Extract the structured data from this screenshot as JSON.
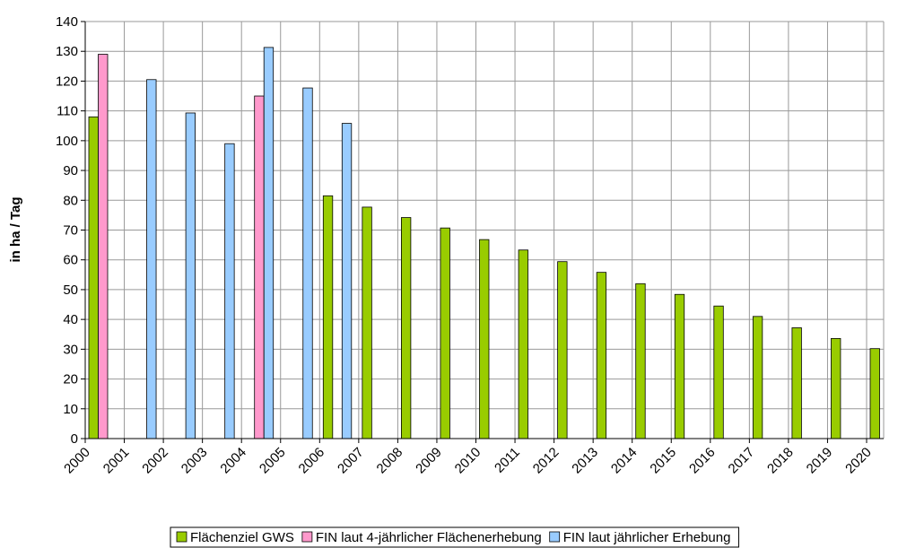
{
  "chart_data": {
    "type": "bar",
    "y_label": "in ha / Tag",
    "categories": [
      "2000",
      "2001",
      "2002",
      "2003",
      "2004",
      "2005",
      "2006",
      "2007",
      "2008",
      "2009",
      "2010",
      "2011",
      "2012",
      "2013",
      "2014",
      "2015",
      "2016",
      "2017",
      "2018",
      "2019",
      "2020"
    ],
    "series": [
      {
        "name": "Flächenziel GWS",
        "color": "#99cc00",
        "values": [
          108,
          null,
          null,
          null,
          null,
          null,
          81.5,
          77.7,
          74.2,
          70.7,
          66.8,
          63.3,
          59.4,
          55.8,
          52,
          48.4,
          44.5,
          41,
          37.2,
          33.6,
          30.2
        ]
      },
      {
        "name": "FIN laut 4-jährlicher Flächenerhebung",
        "color": "#ff99cc",
        "values": [
          129,
          null,
          null,
          null,
          115,
          null,
          null,
          null,
          null,
          null,
          null,
          null,
          null,
          null,
          null,
          null,
          null,
          null,
          null,
          null,
          null
        ]
      },
      {
        "name": "FIN laut jährlicher Erhebung",
        "color": "#99ccff",
        "values": [
          null,
          120.5,
          109.3,
          99,
          131.3,
          117.7,
          105.8,
          null,
          null,
          null,
          null,
          null,
          null,
          null,
          null,
          null,
          null,
          null,
          null,
          null,
          null
        ]
      }
    ],
    "ylim": [
      0,
      140
    ],
    "yticks": [
      0,
      10,
      20,
      30,
      40,
      50,
      60,
      70,
      80,
      90,
      100,
      110,
      120,
      130,
      140
    ],
    "grid": true,
    "legend": "bottom"
  }
}
